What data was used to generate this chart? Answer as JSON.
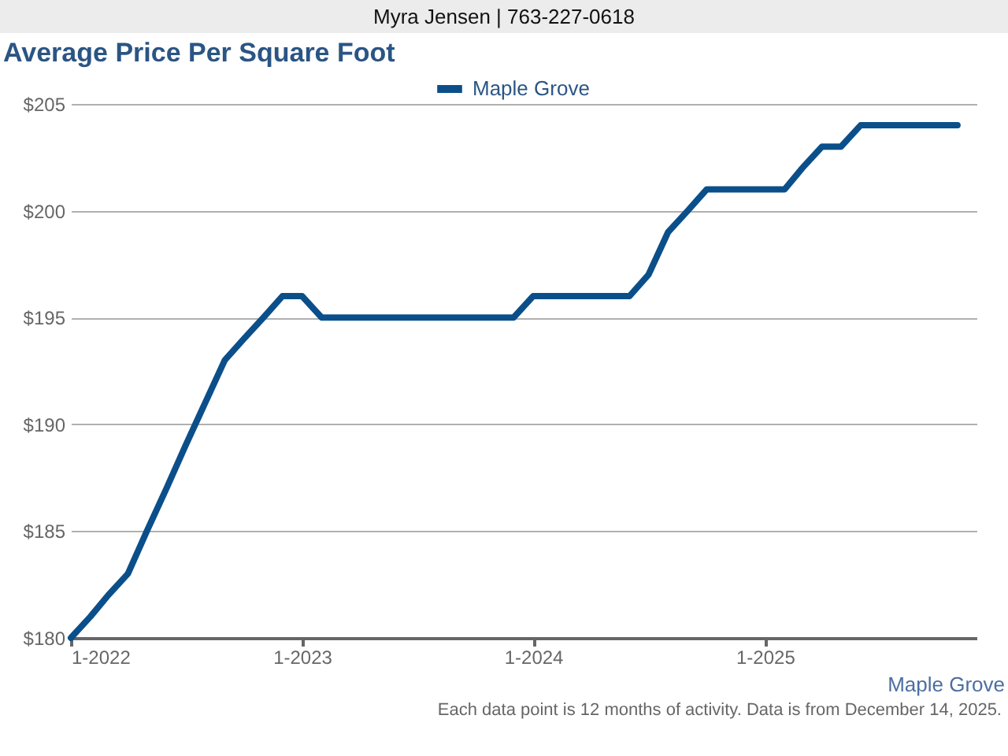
{
  "chart_data": {
    "type": "line",
    "title": "Average Price Per Square Foot",
    "annotations": [
      "Myra Jensen | 763-227-0618",
      "Maple Grove",
      "Each data point is 12 months of activity. Data is from December 14, 2025."
    ],
    "x": [
      "2022-01",
      "2022-02",
      "2022-03",
      "2022-04",
      "2022-05",
      "2022-06",
      "2022-07",
      "2022-08",
      "2022-09",
      "2022-10",
      "2022-11",
      "2022-12",
      "2023-01",
      "2023-02",
      "2023-03",
      "2023-04",
      "2023-05",
      "2023-06",
      "2023-07",
      "2023-08",
      "2023-09",
      "2023-10",
      "2023-11",
      "2023-12",
      "2024-01",
      "2024-02",
      "2024-03",
      "2024-04",
      "2024-05",
      "2024-06",
      "2024-07",
      "2024-08",
      "2024-09",
      "2024-10",
      "2024-11",
      "2024-12",
      "2025-01",
      "2025-02",
      "2025-03",
      "2025-04",
      "2025-05",
      "2025-06",
      "2025-07",
      "2025-08",
      "2025-09",
      "2025-10",
      "2025-11"
    ],
    "series": [
      {
        "name": "Maple Grove",
        "color": "#0b4f8a",
        "values": [
          180,
          181,
          182,
          183,
          185,
          187,
          189,
          191,
          193,
          194,
          195,
          196,
          196,
          195,
          195,
          195,
          195,
          195,
          195,
          195,
          195,
          195,
          195,
          195,
          196,
          196,
          196,
          196,
          196,
          196,
          197,
          199,
          200,
          201,
          201,
          201,
          201,
          201,
          202,
          203,
          203,
          204,
          204,
          204,
          204,
          204,
          204
        ]
      }
    ],
    "xlim": [
      "2022-01",
      "2025-12"
    ],
    "xticks": [
      {
        "value": "2022-01",
        "label": "1-2022"
      },
      {
        "value": "2023-01",
        "label": "1-2023"
      },
      {
        "value": "2024-01",
        "label": "1-2024"
      },
      {
        "value": "2025-01",
        "label": "1-2025"
      }
    ],
    "ylim": [
      180,
      205
    ],
    "yticks": [
      {
        "value": 180,
        "label": "$180"
      },
      {
        "value": 185,
        "label": "$185"
      },
      {
        "value": 190,
        "label": "$190"
      },
      {
        "value": 195,
        "label": "$195"
      },
      {
        "value": 200,
        "label": "$200"
      },
      {
        "value": 205,
        "label": "$205"
      }
    ],
    "grid": "y",
    "legend": "top",
    "marker": "none",
    "line_style": "solid"
  }
}
